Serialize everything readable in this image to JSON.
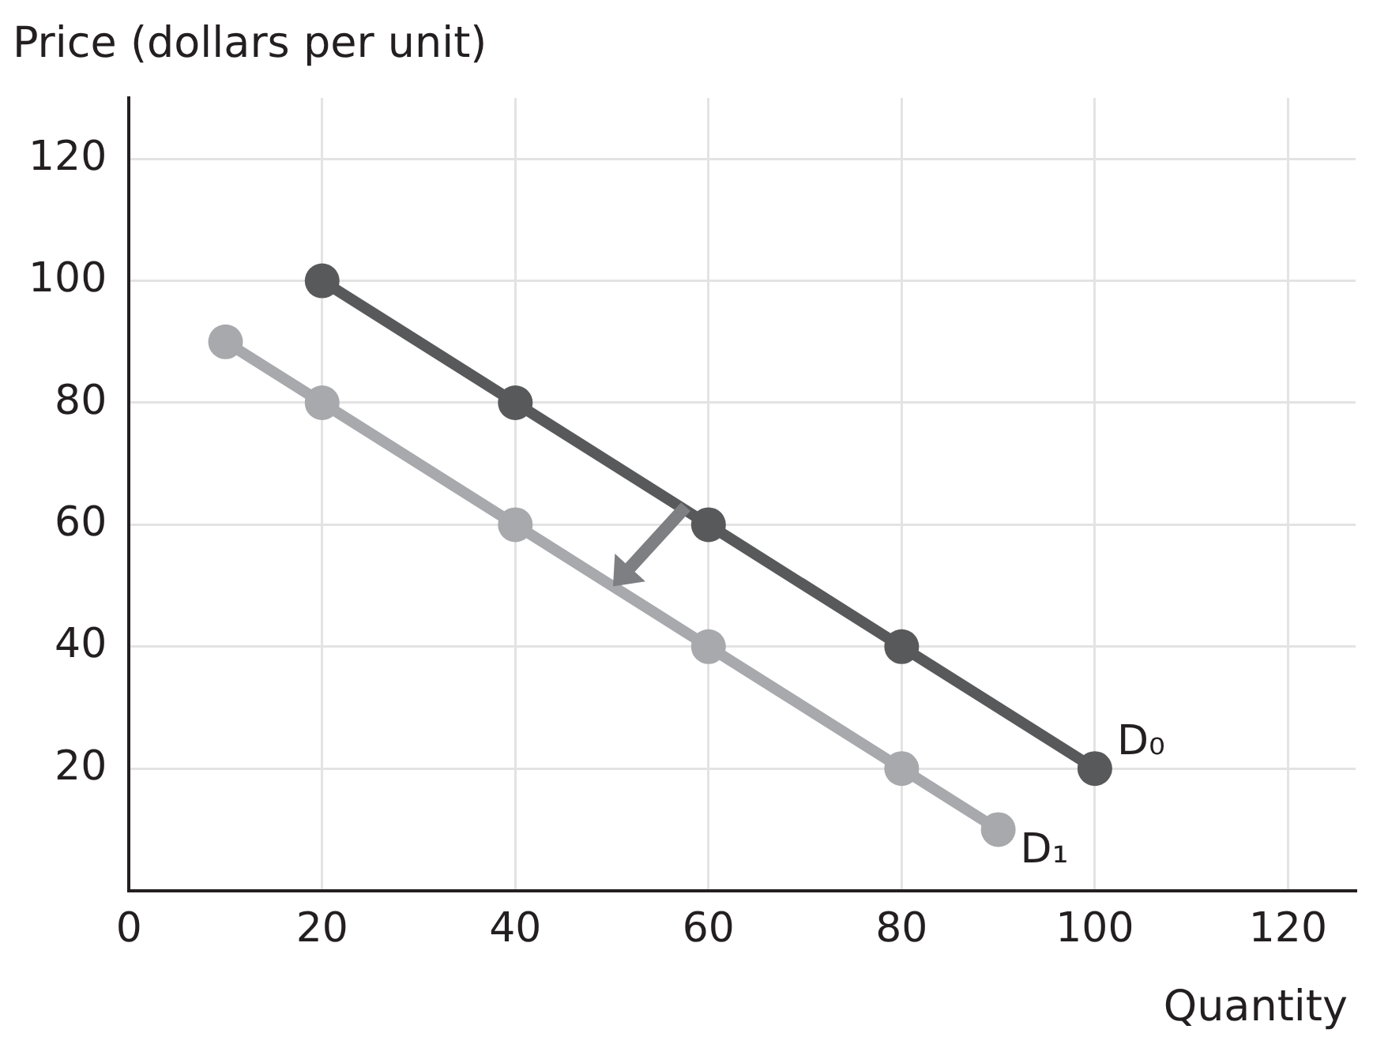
{
  "chart_data": {
    "type": "line",
    "xlabel": "Quantity",
    "ylabel": "Price (dollars per unit)",
    "xlim": [
      0,
      127
    ],
    "xticks": [
      0,
      20,
      40,
      60,
      80,
      100,
      120
    ],
    "ylim": [
      0,
      130
    ],
    "yticks": [
      20,
      40,
      60,
      80,
      100,
      120
    ],
    "grid": true,
    "legend": false,
    "marker": "circle",
    "line_style": "solid",
    "series": [
      {
        "name": "D₀",
        "color": "#58595b",
        "x": [
          20,
          40,
          60,
          80,
          100
        ],
        "values": [
          100,
          80,
          60,
          40,
          20
        ]
      },
      {
        "name": "D₁",
        "color": "#a7a9ac",
        "x": [
          10,
          20,
          40,
          60,
          80,
          90
        ],
        "values": [
          90,
          80,
          60,
          40,
          20,
          10
        ]
      }
    ]
  }
}
